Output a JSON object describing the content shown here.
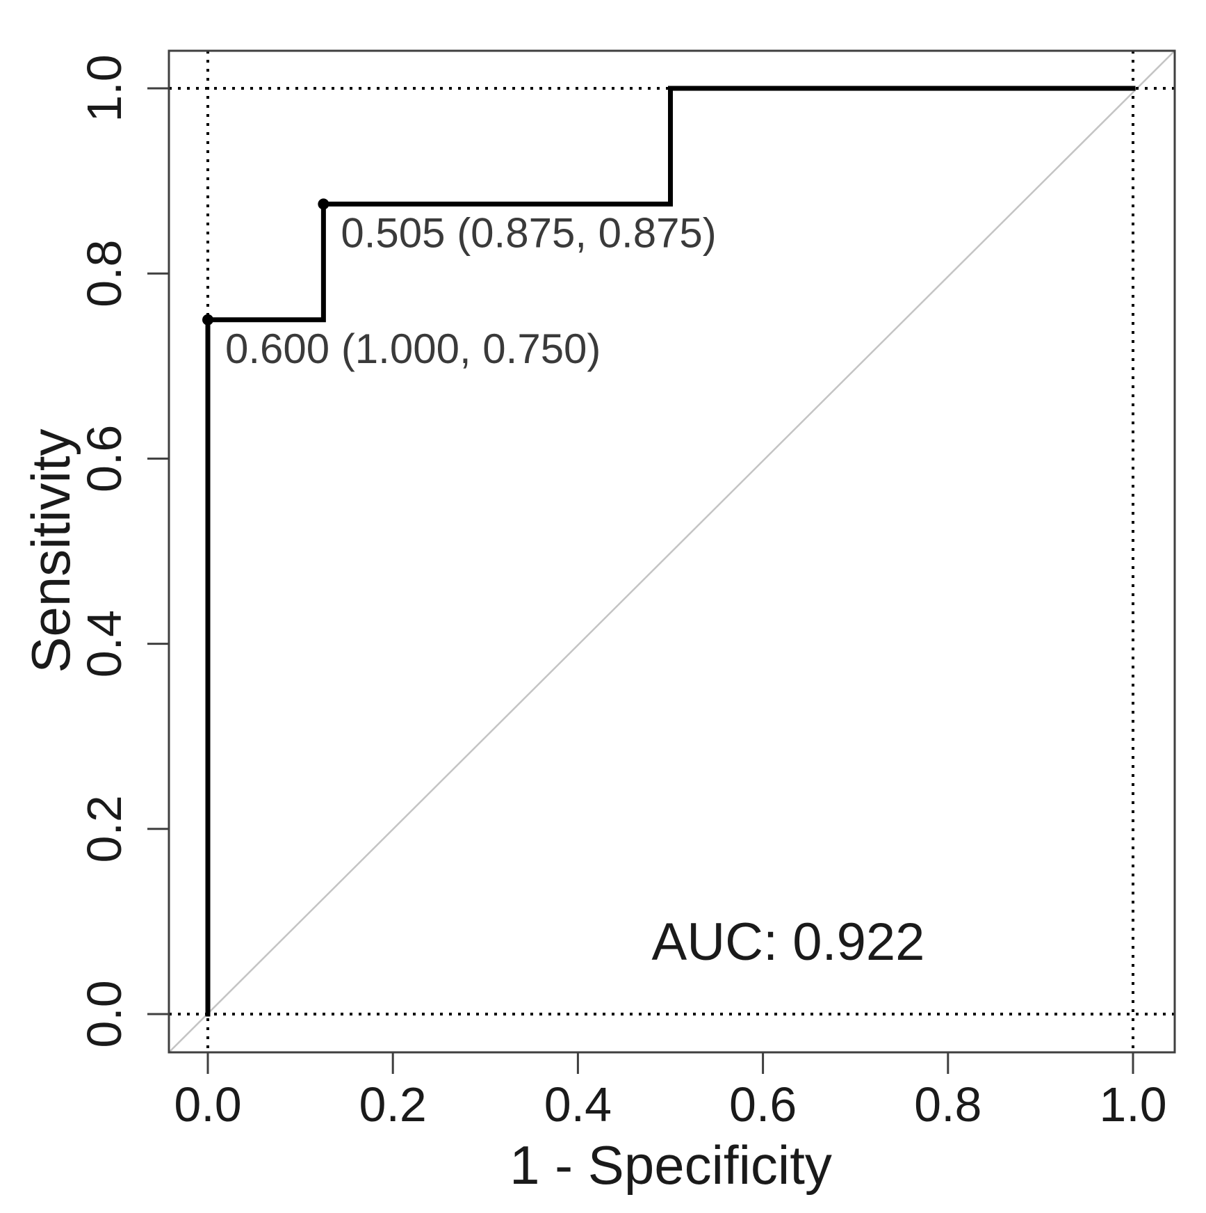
{
  "chart_data": {
    "type": "line",
    "subtype": "roc-curve-step",
    "title": "",
    "xlabel": "1 - Specificity",
    "ylabel": "Sensitivity",
    "xlim": [
      0.0,
      1.0
    ],
    "ylim": [
      0.0,
      1.0
    ],
    "grid": false,
    "legend_position": "none",
    "x_ticks": [
      "0.0",
      "0.2",
      "0.4",
      "0.6",
      "0.8",
      "1.0"
    ],
    "y_ticks": [
      "0.0",
      "0.2",
      "0.4",
      "0.6",
      "0.8",
      "1.0"
    ],
    "x_tick_values": [
      0.0,
      0.2,
      0.4,
      0.6,
      0.8,
      1.0
    ],
    "y_tick_values": [
      0.0,
      0.2,
      0.4,
      0.6,
      0.8,
      1.0
    ],
    "series": [
      {
        "name": "ROC curve",
        "style": "step",
        "x": [
          0.0,
          0.0,
          0.125,
          0.125,
          0.5,
          0.5,
          1.0
        ],
        "y": [
          0.0,
          0.75,
          0.75,
          0.875,
          0.875,
          1.0,
          1.0
        ]
      },
      {
        "name": "Chance diagonal",
        "style": "reference",
        "x": [
          0.0,
          1.0
        ],
        "y": [
          0.0,
          1.0
        ]
      }
    ],
    "guides": {
      "style": "dotted",
      "vertical_x": [
        0.0,
        1.0
      ],
      "horizontal_y": [
        0.0,
        1.0
      ]
    },
    "threshold_points": [
      {
        "threshold": "0.505",
        "specificity": 0.875,
        "sensitivity": 0.875,
        "x": 0.125,
        "y": 0.875,
        "label": "0.505 (0.875, 0.875)"
      },
      {
        "threshold": "0.600",
        "specificity": 1.0,
        "sensitivity": 0.75,
        "x": 0.0,
        "y": 0.75,
        "label": "0.600 (1.000, 0.750)"
      }
    ],
    "auc_value": 0.922,
    "auc_label": "AUC: 0.922"
  },
  "colors": {
    "curve": "#000000",
    "marker": "#000000",
    "reference_line": "#c4c4c4",
    "frame": "#3f3f3f",
    "guide": "#000000",
    "text": "#1a1a1a",
    "annotation_text": "#3a3a3a",
    "background": "#ffffff"
  }
}
